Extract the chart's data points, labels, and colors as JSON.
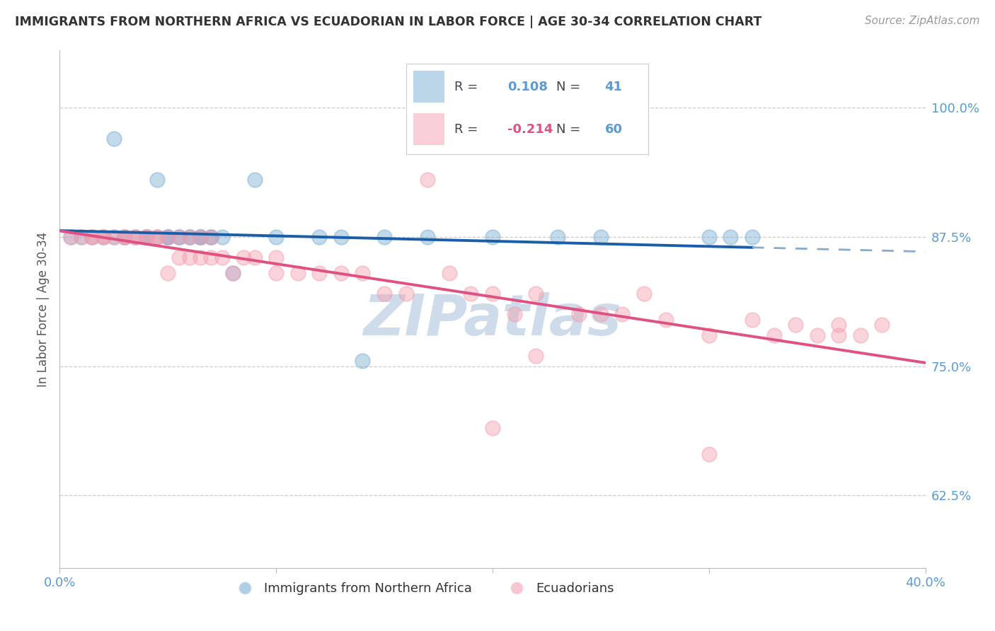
{
  "title": "IMMIGRANTS FROM NORTHERN AFRICA VS ECUADORIAN IN LABOR FORCE | AGE 30-34 CORRELATION CHART",
  "source": "Source: ZipAtlas.com",
  "ylabel": "In Labor Force | Age 30-34",
  "xlim": [
    0.0,
    0.4
  ],
  "ylim": [
    0.555,
    1.055
  ],
  "yticks": [
    0.625,
    0.75,
    0.875,
    1.0
  ],
  "ytick_labels": [
    "62.5%",
    "75.0%",
    "87.5%",
    "100.0%"
  ],
  "xtick_labels": [
    "0.0%",
    "40.0%"
  ],
  "r_blue": 0.108,
  "n_blue": 41,
  "r_pink": -0.214,
  "n_pink": 60,
  "blue_color": "#7BAFD4",
  "pink_color": "#F4A0B0",
  "blue_line_color": "#1A5EA8",
  "pink_line_color": "#E05080",
  "dashed_line_color": "#88AACC",
  "title_color": "#333333",
  "axis_label_color": "#5B9BD5",
  "watermark_color": "#C8D8E8",
  "blue_scatter_x": [
    0.005,
    0.01,
    0.015,
    0.02,
    0.025,
    0.03,
    0.03,
    0.035,
    0.04,
    0.04,
    0.04,
    0.045,
    0.045,
    0.05,
    0.05,
    0.05,
    0.055,
    0.055,
    0.06,
    0.06,
    0.065,
    0.065,
    0.065,
    0.07,
    0.07,
    0.075,
    0.08,
    0.09,
    0.1,
    0.12,
    0.13,
    0.15,
    0.17,
    0.2,
    0.23,
    0.25,
    0.3,
    0.31,
    0.32,
    0.025,
    0.14
  ],
  "blue_scatter_y": [
    0.875,
    0.875,
    0.875,
    0.875,
    0.875,
    0.875,
    0.875,
    0.875,
    0.875,
    0.875,
    0.875,
    0.875,
    0.93,
    0.875,
    0.875,
    0.875,
    0.875,
    0.875,
    0.875,
    0.875,
    0.875,
    0.875,
    0.875,
    0.875,
    0.875,
    0.875,
    0.84,
    0.93,
    0.875,
    0.875,
    0.875,
    0.875,
    0.875,
    0.875,
    0.875,
    0.875,
    0.875,
    0.875,
    0.875,
    0.97,
    0.755
  ],
  "pink_scatter_x": [
    0.005,
    0.01,
    0.015,
    0.015,
    0.02,
    0.02,
    0.025,
    0.03,
    0.03,
    0.035,
    0.035,
    0.04,
    0.04,
    0.045,
    0.045,
    0.05,
    0.05,
    0.055,
    0.055,
    0.06,
    0.06,
    0.065,
    0.065,
    0.07,
    0.07,
    0.075,
    0.08,
    0.085,
    0.09,
    0.1,
    0.1,
    0.11,
    0.12,
    0.13,
    0.14,
    0.15,
    0.16,
    0.17,
    0.18,
    0.19,
    0.2,
    0.21,
    0.22,
    0.24,
    0.25,
    0.26,
    0.27,
    0.28,
    0.3,
    0.32,
    0.33,
    0.34,
    0.35,
    0.36,
    0.37,
    0.38,
    0.2,
    0.3,
    0.36,
    0.22
  ],
  "pink_scatter_y": [
    0.875,
    0.875,
    0.875,
    0.875,
    0.875,
    0.875,
    0.875,
    0.875,
    0.875,
    0.875,
    0.875,
    0.875,
    0.875,
    0.875,
    0.875,
    0.875,
    0.84,
    0.875,
    0.855,
    0.875,
    0.855,
    0.875,
    0.855,
    0.855,
    0.875,
    0.855,
    0.84,
    0.855,
    0.855,
    0.84,
    0.855,
    0.84,
    0.84,
    0.84,
    0.84,
    0.82,
    0.82,
    0.93,
    0.84,
    0.82,
    0.82,
    0.8,
    0.82,
    0.8,
    0.8,
    0.8,
    0.82,
    0.795,
    0.78,
    0.795,
    0.78,
    0.79,
    0.78,
    0.79,
    0.78,
    0.79,
    0.69,
    0.665,
    0.78,
    0.76
  ]
}
